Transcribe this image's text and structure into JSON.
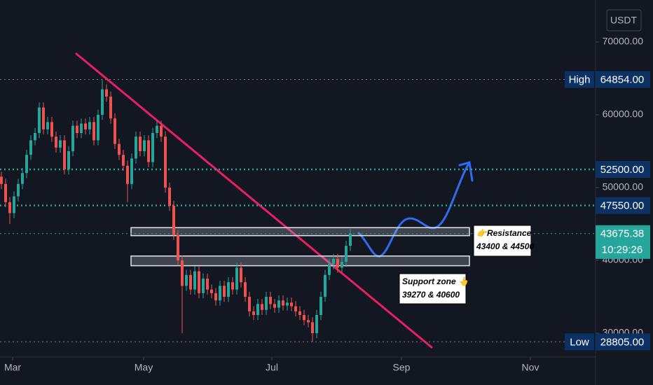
{
  "chart_data": {
    "type": "candlestick",
    "currency": "USDT",
    "up_color": "#26a69a",
    "down_color": "#ef5350",
    "ylim": [
      26730,
      75770
    ],
    "yticks": [
      {
        "value": 30000,
        "label": "30000.00"
      },
      {
        "value": 40000,
        "label": "40000.00"
      },
      {
        "value": 50000,
        "label": "50000.00"
      },
      {
        "value": 60000,
        "label": "60000.00"
      },
      {
        "value": 70000,
        "label": "70000.00"
      }
    ],
    "grid": false,
    "categories": [
      "Mar",
      "May",
      "Jul",
      "Sep",
      "Nov"
    ],
    "candles": [
      [
        51500,
        52200,
        49800,
        50500
      ],
      [
        50500,
        51200,
        47300,
        48000
      ],
      [
        48000,
        48700,
        45000,
        46500
      ],
      [
        46500,
        49500,
        45800,
        48800
      ],
      [
        48800,
        51200,
        48100,
        50500
      ],
      [
        50500,
        52700,
        49800,
        52000
      ],
      [
        52000,
        55200,
        51300,
        54500
      ],
      [
        54500,
        57200,
        53800,
        56500
      ],
      [
        56500,
        58200,
        55800,
        57500
      ],
      [
        57500,
        61700,
        56800,
        61000
      ],
      [
        61000,
        61700,
        57300,
        58000
      ],
      [
        58000,
        59700,
        57300,
        59000
      ],
      [
        59000,
        59700,
        56300,
        57000
      ],
      [
        57000,
        57700,
        54800,
        55500
      ],
      [
        55500,
        57200,
        54800,
        56500
      ],
      [
        56500,
        57200,
        51800,
        52500
      ],
      [
        52500,
        55700,
        51800,
        55000
      ],
      [
        55000,
        59200,
        54300,
        58500
      ],
      [
        58500,
        59200,
        56800,
        57500
      ],
      [
        57500,
        59500,
        56800,
        58800
      ],
      [
        58800,
        59500,
        57300,
        58000
      ],
      [
        58000,
        59700,
        57300,
        59000
      ],
      [
        59000,
        59700,
        55800,
        56500
      ],
      [
        56500,
        60700,
        55800,
        60000
      ],
      [
        60000,
        64854,
        59300,
        63500
      ],
      [
        63500,
        64200,
        61800,
        62500
      ],
      [
        62500,
        63200,
        58800,
        59500
      ],
      [
        59500,
        60200,
        55300,
        56000
      ],
      [
        56000,
        56700,
        53800,
        54500
      ],
      [
        54500,
        55200,
        52300,
        53000
      ],
      [
        53000,
        53700,
        48000,
        50500
      ],
      [
        50500,
        54700,
        49800,
        54000
      ],
      [
        54000,
        57700,
        53300,
        57000
      ],
      [
        57000,
        57700,
        54300,
        55000
      ],
      [
        55000,
        57200,
        54300,
        56500
      ],
      [
        56500,
        57200,
        52800,
        53500
      ],
      [
        53500,
        58200,
        52800,
        57500
      ],
      [
        57500,
        59200,
        56800,
        58500
      ],
      [
        58500,
        59200,
        56300,
        57000
      ],
      [
        57000,
        57700,
        49300,
        50000
      ],
      [
        50000,
        50700,
        46800,
        47500
      ],
      [
        47500,
        48200,
        42800,
        43500
      ],
      [
        43500,
        44200,
        39300,
        40000
      ],
      [
        40000,
        40700,
        30000,
        36500
      ],
      [
        36500,
        38700,
        35800,
        38000
      ],
      [
        38000,
        38700,
        35300,
        36000
      ],
      [
        36000,
        39200,
        35300,
        38500
      ],
      [
        38500,
        39200,
        34800,
        35500
      ],
      [
        35500,
        38200,
        34800,
        37500
      ],
      [
        37500,
        38200,
        35300,
        36000
      ],
      [
        36000,
        36700,
        34800,
        35500
      ],
      [
        35500,
        36200,
        33800,
        34500
      ],
      [
        34500,
        37200,
        33800,
        36500
      ],
      [
        36500,
        37200,
        34300,
        35000
      ],
      [
        35000,
        37700,
        34300,
        37000
      ],
      [
        37000,
        37700,
        35300,
        36000
      ],
      [
        36000,
        39700,
        35300,
        39000
      ],
      [
        39000,
        39700,
        36300,
        37000
      ],
      [
        37000,
        37700,
        34300,
        35000
      ],
      [
        35000,
        35700,
        32300,
        33000
      ],
      [
        33000,
        33700,
        31800,
        32500
      ],
      [
        32500,
        34700,
        31800,
        34000
      ],
      [
        34000,
        34700,
        32500,
        33200
      ],
      [
        33200,
        35700,
        32500,
        35000
      ],
      [
        35000,
        35700,
        33300,
        34000
      ],
      [
        34000,
        34700,
        32800,
        33500
      ],
      [
        33500,
        35200,
        32800,
        34500
      ],
      [
        34500,
        35200,
        33100,
        33800
      ],
      [
        33800,
        34900,
        33100,
        34200
      ],
      [
        34200,
        34900,
        33000,
        33700
      ],
      [
        33700,
        34400,
        32300,
        33000
      ],
      [
        33000,
        33700,
        31800,
        32500
      ],
      [
        32500,
        33200,
        31100,
        31800
      ],
      [
        31800,
        32500,
        30800,
        31500
      ],
      [
        31500,
        32200,
        28805,
        30000
      ],
      [
        30000,
        33200,
        29300,
        32500
      ],
      [
        32500,
        35700,
        31800,
        35000
      ],
      [
        35000,
        38700,
        34300,
        38000
      ],
      [
        38000,
        40200,
        37300,
        39500
      ],
      [
        39500,
        40900,
        38800,
        40200
      ],
      [
        40200,
        40900,
        38300,
        39000
      ],
      [
        39000,
        40500,
        38300,
        39800
      ],
      [
        39800,
        42700,
        39100,
        42000
      ],
      [
        42000,
        44300,
        41300,
        43675.38
      ]
    ],
    "high": {
      "label": "High",
      "value": 64854,
      "value_label": "64854.00"
    },
    "low": {
      "label": "Low",
      "value": 28805,
      "value_label": "28805.00"
    },
    "levels": [
      {
        "value": 52500,
        "label": "52500.00"
      },
      {
        "value": 47550,
        "label": "47550.00"
      }
    ],
    "last": {
      "value": 43675.38,
      "label": "43675.38",
      "countdown": "10:29:26"
    },
    "zones": [
      {
        "low": 43400,
        "high": 44500,
        "text": [
          "👉Resistance",
          "43400 & 44500"
        ]
      },
      {
        "low": 39270,
        "high": 40600,
        "text": [
          "Support zone 👆",
          "39270 & 40600"
        ]
      }
    ]
  }
}
